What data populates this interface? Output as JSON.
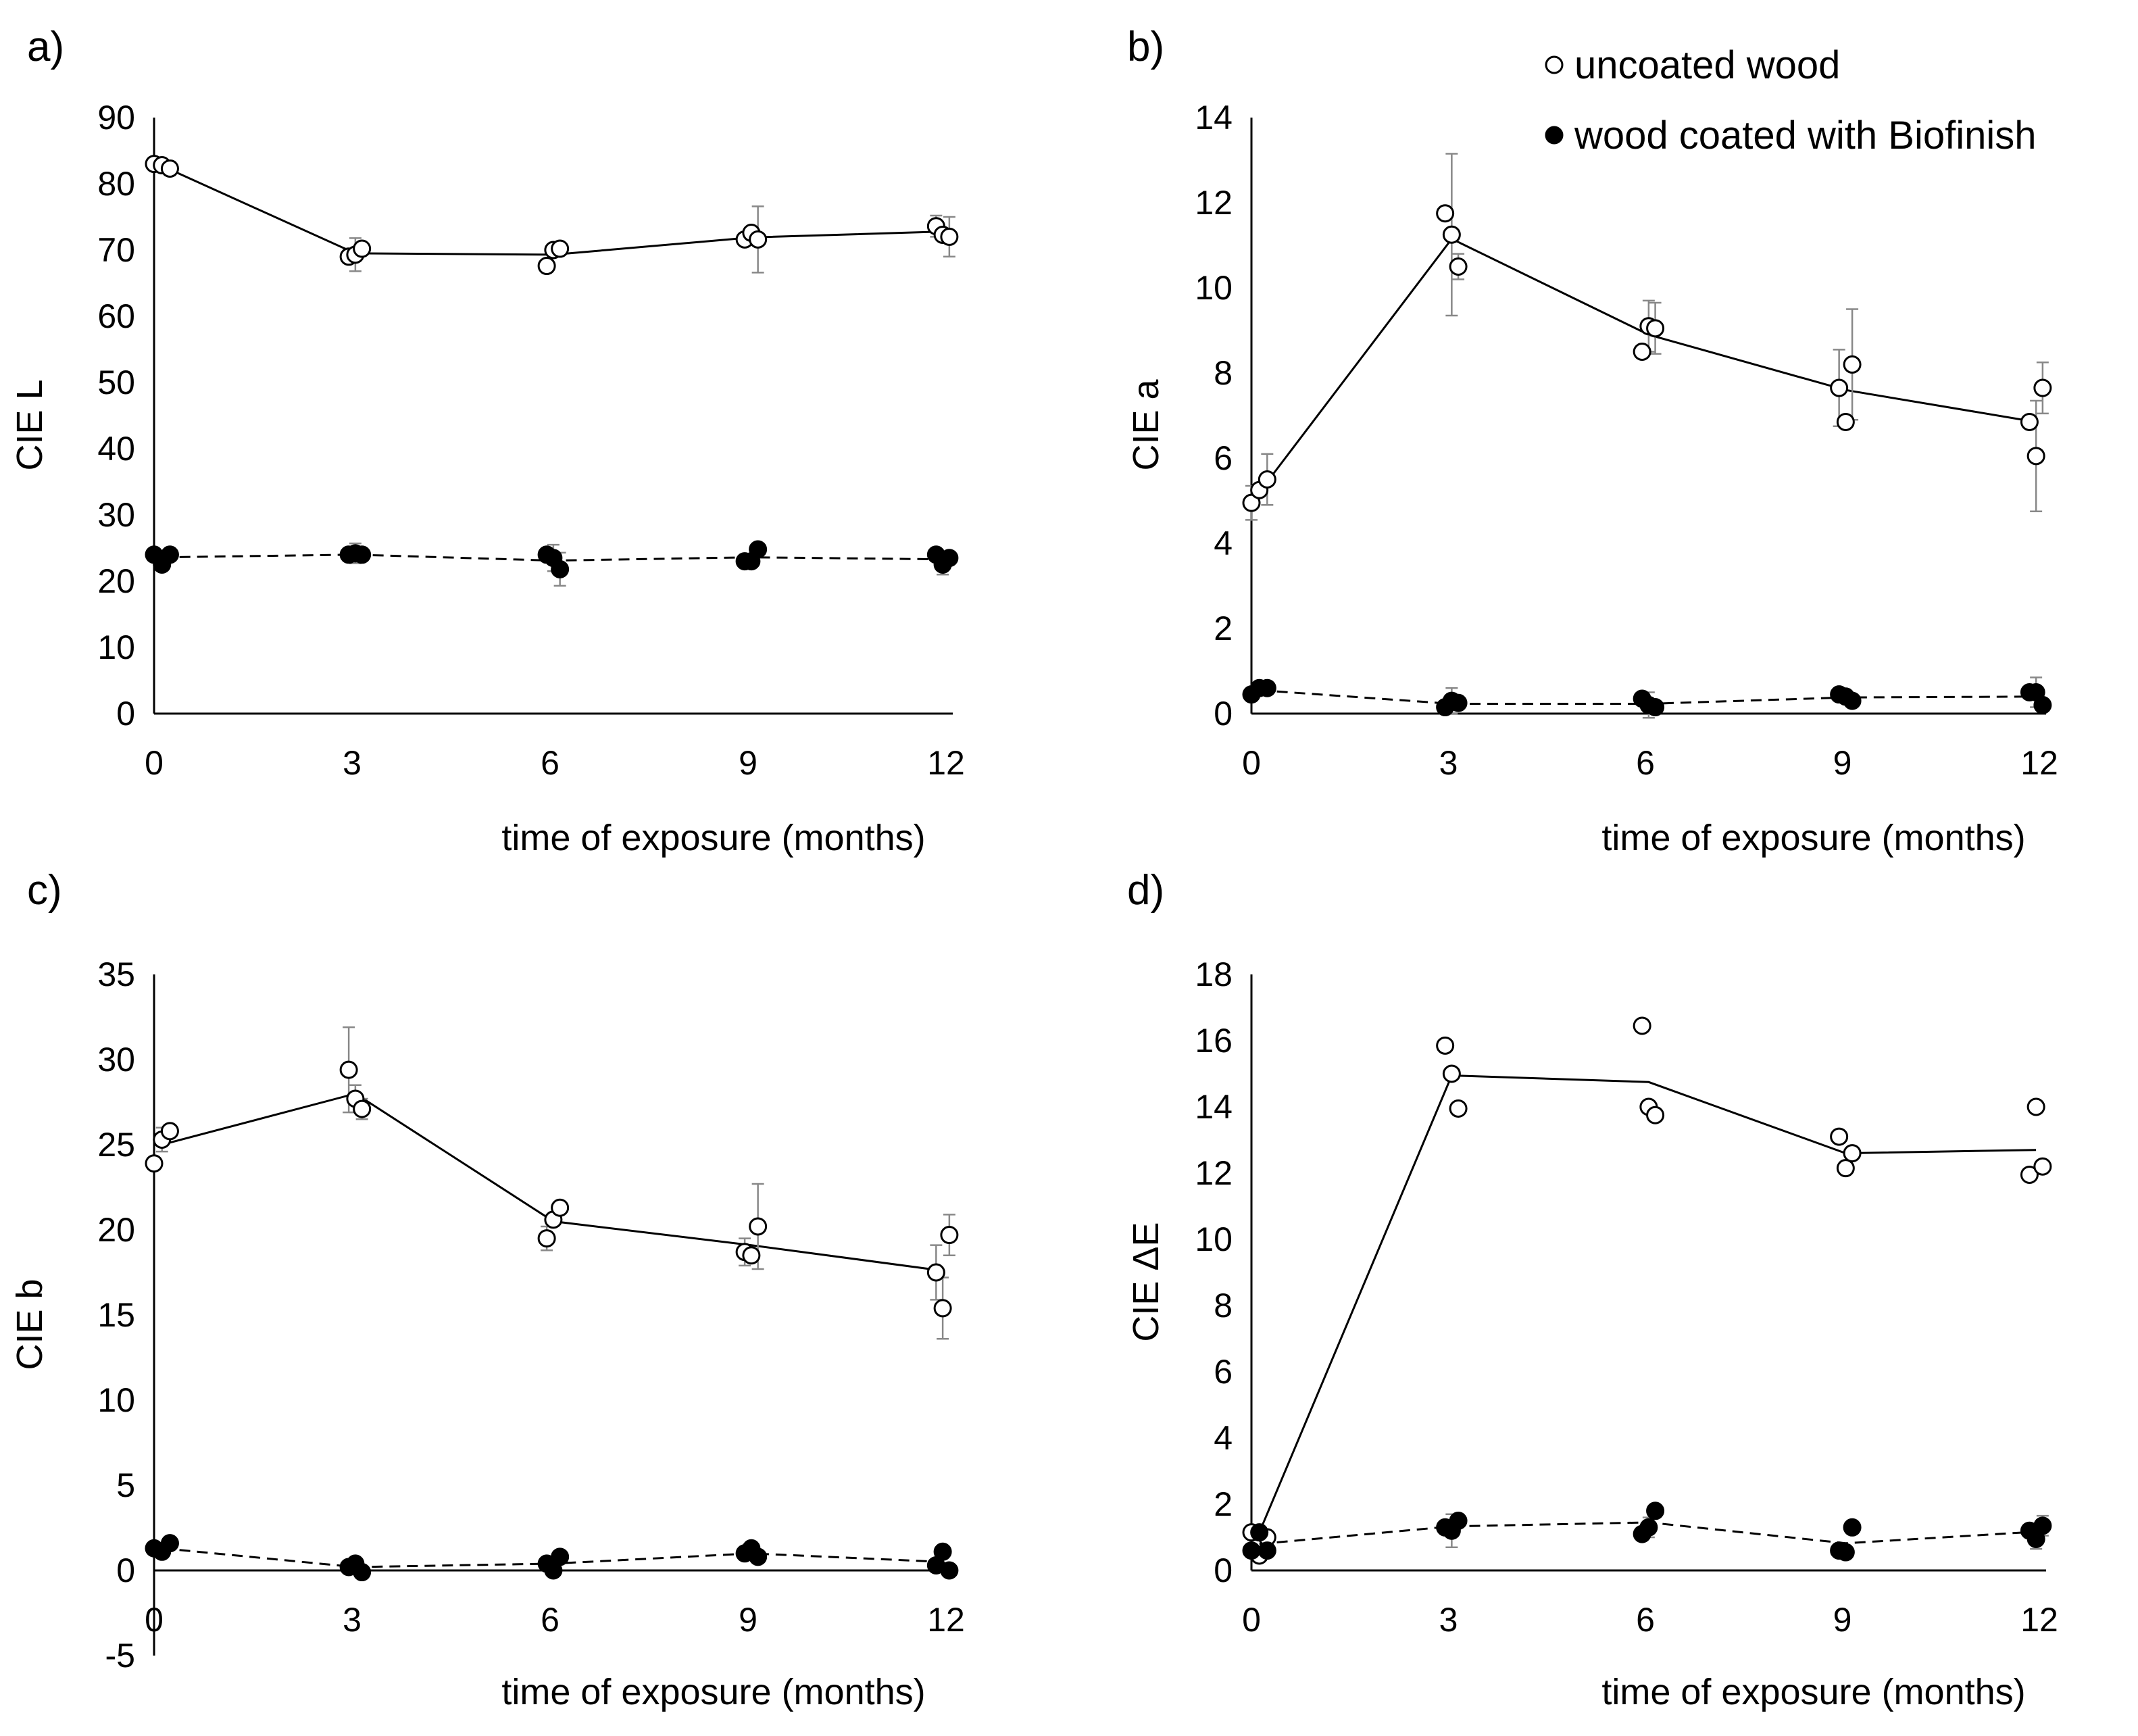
{
  "legend": {
    "uncoated": "uncoated wood",
    "coated": "wood coated with Biofinish"
  },
  "chart_data": [
    {
      "panel": "a)",
      "type": "scatter",
      "xlabel": "time of exposure (months)",
      "ylabel": "CIE L",
      "xlim": [
        0,
        12
      ],
      "ylim": [
        0,
        90
      ],
      "xticks": [
        0,
        3,
        6,
        9,
        12
      ],
      "yticks": [
        0,
        10,
        20,
        30,
        40,
        50,
        60,
        70,
        80,
        90
      ],
      "series": [
        {
          "name": "uncoated wood",
          "marker": "open",
          "points": [
            [
              0,
              83.0
            ],
            [
              0.12,
              82.8
            ],
            [
              0.24,
              82.3
            ],
            [
              2.95,
              69.0
            ],
            [
              3.05,
              69.3
            ],
            [
              3.15,
              70.2
            ],
            [
              5.95,
              67.6
            ],
            [
              6.05,
              70.0
            ],
            [
              6.15,
              70.2
            ],
            [
              8.95,
              71.6
            ],
            [
              9.05,
              72.6
            ],
            [
              9.15,
              71.6
            ],
            [
              11.85,
              73.6
            ],
            [
              11.95,
              72.3
            ],
            [
              12.05,
              72.0
            ]
          ],
          "line": [
            [
              0.12,
              82.7
            ],
            [
              3.05,
              69.5
            ],
            [
              6.05,
              69.3
            ],
            [
              9.05,
              71.9
            ],
            [
              11.95,
              72.8
            ]
          ],
          "errors": [
            [
              0.24,
              82.3,
              1.0
            ],
            [
              3.05,
              69.3,
              2.5
            ],
            [
              6.05,
              70.0,
              0.6
            ],
            [
              9.15,
              71.6,
              5.0
            ],
            [
              11.85,
              73.6,
              1.6
            ],
            [
              12.05,
              72.0,
              3.0
            ]
          ]
        },
        {
          "name": "wood coated with Biofinish",
          "marker": "filled",
          "points": [
            [
              0,
              24.0
            ],
            [
              0.12,
              22.5
            ],
            [
              0.24,
              24.0
            ],
            [
              2.95,
              24.0
            ],
            [
              3.05,
              24.2
            ],
            [
              3.15,
              24.0
            ],
            [
              5.95,
              24.0
            ],
            [
              6.05,
              23.5
            ],
            [
              6.15,
              21.8
            ],
            [
              8.95,
              23.0
            ],
            [
              9.05,
              23.0
            ],
            [
              9.15,
              24.8
            ],
            [
              11.85,
              24.0
            ],
            [
              11.95,
              22.5
            ],
            [
              12.05,
              23.5
            ]
          ],
          "line": [
            [
              0.12,
              23.6
            ],
            [
              3.05,
              24.0
            ],
            [
              6.05,
              23.1
            ],
            [
              9.05,
              23.6
            ],
            [
              11.95,
              23.3
            ]
          ],
          "errors": [
            [
              3.05,
              24.2,
              1.5
            ],
            [
              6.05,
              23.5,
              2.0
            ],
            [
              6.15,
              21.8,
              2.5
            ],
            [
              11.95,
              22.5,
              1.5
            ]
          ]
        }
      ]
    },
    {
      "panel": "b)",
      "type": "scatter",
      "xlabel": "time of exposure (months)",
      "ylabel": "CIE a",
      "xlim": [
        0,
        12
      ],
      "ylim": [
        0,
        14
      ],
      "xticks": [
        0,
        3,
        6,
        9,
        12
      ],
      "yticks": [
        0,
        2,
        4,
        6,
        8,
        10,
        12,
        14
      ],
      "series": [
        {
          "name": "uncoated wood",
          "marker": "open",
          "points": [
            [
              0,
              4.95
            ],
            [
              0.12,
              5.25
            ],
            [
              0.24,
              5.5
            ],
            [
              2.95,
              11.75
            ],
            [
              3.05,
              11.25
            ],
            [
              3.15,
              10.5
            ],
            [
              5.95,
              8.5
            ],
            [
              6.05,
              9.1
            ],
            [
              6.15,
              9.05
            ],
            [
              8.95,
              7.65
            ],
            [
              9.05,
              6.85
            ],
            [
              9.15,
              8.2
            ],
            [
              11.85,
              6.85
            ],
            [
              11.95,
              6.05
            ],
            [
              12.05,
              7.65
            ]
          ],
          "line": [
            [
              0.12,
              5.2
            ],
            [
              3.05,
              11.15
            ],
            [
              6.05,
              8.9
            ],
            [
              9.05,
              7.6
            ],
            [
              11.95,
              6.85
            ]
          ],
          "errors": [
            [
              0,
              4.95,
              0.4
            ],
            [
              0.24,
              5.5,
              0.6
            ],
            [
              3.05,
              11.25,
              1.9
            ],
            [
              3.15,
              10.5,
              0.3
            ],
            [
              6.05,
              9.1,
              0.6
            ],
            [
              6.15,
              9.05,
              0.6
            ],
            [
              8.95,
              7.65,
              0.9
            ],
            [
              9.15,
              8.2,
              1.3
            ],
            [
              11.95,
              6.05,
              1.3
            ],
            [
              12.05,
              7.65,
              0.6
            ]
          ]
        },
        {
          "name": "wood coated with Biofinish",
          "marker": "filled",
          "points": [
            [
              0,
              0.45
            ],
            [
              0.12,
              0.6
            ],
            [
              0.24,
              0.6
            ],
            [
              2.95,
              0.15
            ],
            [
              3.05,
              0.3
            ],
            [
              3.15,
              0.25
            ],
            [
              5.95,
              0.35
            ],
            [
              6.05,
              0.2
            ],
            [
              6.15,
              0.15
            ],
            [
              8.95,
              0.45
            ],
            [
              9.05,
              0.4
            ],
            [
              9.15,
              0.3
            ],
            [
              11.85,
              0.5
            ],
            [
              11.95,
              0.5
            ],
            [
              12.05,
              0.2
            ]
          ],
          "line": [
            [
              0.12,
              0.55
            ],
            [
              3.05,
              0.23
            ],
            [
              6.05,
              0.23
            ],
            [
              9.05,
              0.38
            ],
            [
              11.95,
              0.4
            ]
          ],
          "errors": [
            [
              3.05,
              0.3,
              0.3
            ],
            [
              6.05,
              0.2,
              0.3
            ],
            [
              11.95,
              0.5,
              0.35
            ]
          ]
        }
      ]
    },
    {
      "panel": "c)",
      "type": "scatter",
      "xlabel": "time of exposure (months)",
      "ylabel": "CIE b",
      "xlim": [
        0,
        12
      ],
      "ylim": [
        -5,
        35
      ],
      "xticks": [
        0,
        3,
        6,
        9,
        12
      ],
      "yticks": [
        -5,
        0,
        5,
        10,
        15,
        20,
        25,
        30,
        35
      ],
      "series": [
        {
          "name": "uncoated wood",
          "marker": "open",
          "points": [
            [
              0,
              23.9
            ],
            [
              0.12,
              25.3
            ],
            [
              0.24,
              25.8
            ],
            [
              2.95,
              29.4
            ],
            [
              3.05,
              27.7
            ],
            [
              3.15,
              27.1
            ],
            [
              5.95,
              19.5
            ],
            [
              6.05,
              20.6
            ],
            [
              6.15,
              21.3
            ],
            [
              8.95,
              18.7
            ],
            [
              9.05,
              18.5
            ],
            [
              9.15,
              20.2
            ],
            [
              11.85,
              17.5
            ],
            [
              11.95,
              15.4
            ],
            [
              12.05,
              19.7
            ]
          ],
          "line": [
            [
              0.12,
              25.0
            ],
            [
              3.05,
              28.0
            ],
            [
              6.05,
              20.5
            ],
            [
              9.05,
              19.1
            ],
            [
              11.95,
              17.6
            ]
          ],
          "errors": [
            [
              0.12,
              25.3,
              0.7
            ],
            [
              2.95,
              29.4,
              2.5
            ],
            [
              3.05,
              27.7,
              0.8
            ],
            [
              3.15,
              27.1,
              0.6
            ],
            [
              5.95,
              19.5,
              0.7
            ],
            [
              8.95,
              18.7,
              0.8
            ],
            [
              9.15,
              20.2,
              2.5
            ],
            [
              11.85,
              17.5,
              1.6
            ],
            [
              11.95,
              15.4,
              1.8
            ],
            [
              12.05,
              19.7,
              1.2
            ]
          ]
        },
        {
          "name": "wood coated with Biofinish",
          "marker": "filled",
          "points": [
            [
              0,
              1.3
            ],
            [
              0.12,
              1.1
            ],
            [
              0.24,
              1.6
            ],
            [
              2.95,
              0.2
            ],
            [
              3.05,
              0.4
            ],
            [
              3.15,
              -0.1
            ],
            [
              5.95,
              0.4
            ],
            [
              6.05,
              0.0
            ],
            [
              6.15,
              0.8
            ],
            [
              8.95,
              1.0
            ],
            [
              9.05,
              1.3
            ],
            [
              9.15,
              0.8
            ],
            [
              11.85,
              0.3
            ],
            [
              11.95,
              1.1
            ],
            [
              12.05,
              0.0
            ]
          ],
          "line": [
            [
              0.12,
              1.3
            ],
            [
              3.05,
              0.2
            ],
            [
              6.05,
              0.4
            ],
            [
              9.05,
              1.0
            ],
            [
              11.95,
              0.5
            ]
          ],
          "errors": []
        }
      ]
    },
    {
      "panel": "d)",
      "type": "scatter",
      "xlabel": "time of exposure (months)",
      "ylabel": "CIE ΔE",
      "xlim": [
        0,
        12
      ],
      "ylim": [
        0,
        18
      ],
      "xticks": [
        0,
        3,
        6,
        9,
        12
      ],
      "yticks": [
        0,
        2,
        4,
        6,
        8,
        10,
        12,
        14,
        16,
        18
      ],
      "series": [
        {
          "name": "uncoated wood",
          "marker": "open",
          "points": [
            [
              0,
              1.15
            ],
            [
              0.12,
              0.45
            ],
            [
              0.24,
              1.0
            ],
            [
              2.95,
              15.85
            ],
            [
              3.05,
              15.0
            ],
            [
              3.15,
              13.95
            ],
            [
              5.95,
              16.45
            ],
            [
              6.05,
              14.0
            ],
            [
              6.15,
              13.75
            ],
            [
              8.95,
              13.1
            ],
            [
              9.05,
              12.15
            ],
            [
              9.15,
              12.6
            ],
            [
              11.85,
              11.95
            ],
            [
              11.95,
              14.0
            ],
            [
              12.05,
              12.2
            ]
          ],
          "line": [
            [
              0.12,
              1.15
            ],
            [
              3.05,
              14.95
            ],
            [
              6.05,
              14.75
            ],
            [
              9.05,
              12.6
            ],
            [
              11.95,
              12.7
            ]
          ],
          "errors": []
        },
        {
          "name": "wood coated with Biofinish",
          "marker": "filled",
          "points": [
            [
              0,
              0.6
            ],
            [
              0.12,
              1.15
            ],
            [
              0.24,
              0.6
            ],
            [
              2.95,
              1.3
            ],
            [
              3.05,
              1.2
            ],
            [
              3.15,
              1.5
            ],
            [
              5.95,
              1.1
            ],
            [
              6.05,
              1.3
            ],
            [
              6.15,
              1.8
            ],
            [
              8.95,
              0.6
            ],
            [
              9.05,
              0.55
            ],
            [
              9.15,
              1.3
            ],
            [
              11.85,
              1.2
            ],
            [
              11.95,
              0.95
            ],
            [
              12.05,
              1.35
            ]
          ],
          "line": [
            [
              0.12,
              0.8
            ],
            [
              3.05,
              1.33
            ],
            [
              6.05,
              1.45
            ],
            [
              9.05,
              0.82
            ],
            [
              11.95,
              1.17
            ]
          ],
          "errors": [
            [
              3.05,
              1.2,
              0.5
            ],
            [
              6.05,
              1.3,
              0.3
            ],
            [
              11.95,
              0.95,
              0.3
            ],
            [
              12.05,
              1.35,
              0.3
            ]
          ]
        }
      ]
    }
  ]
}
